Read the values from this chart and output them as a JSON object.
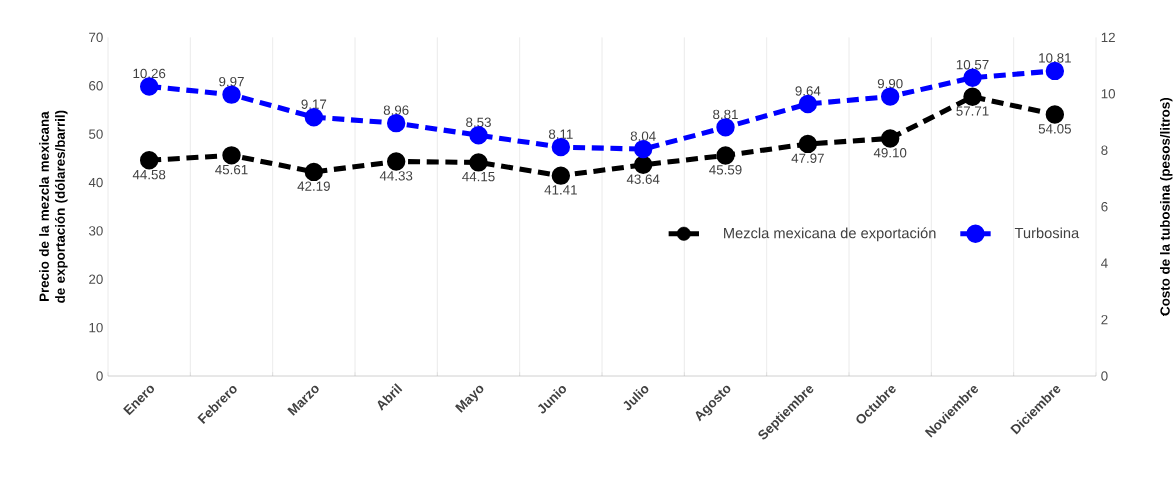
{
  "chart_data": {
    "type": "line",
    "ylabel": "Precio de la mezcla mexicana de exportación (dólares/barril)",
    "y2label": "Costo de la tubosina (pesos/litros)",
    "categories": [
      "Enero",
      "Febrero",
      "Marzo",
      "Abril",
      "Mayo",
      "Junio",
      "Julio",
      "Agosto",
      "Septiembre",
      "Octubre",
      "Noviembre",
      "Diciembre"
    ],
    "series": [
      {
        "name": "Mezcla mexicana de exportación",
        "color": "#000000",
        "axis": "y",
        "values": [
          44.58,
          45.61,
          42.19,
          44.33,
          44.15,
          41.41,
          43.64,
          45.59,
          47.97,
          49.1,
          57.71,
          54.05
        ],
        "value_labels": [
          "44.58",
          "45.61",
          "42.19",
          "44.33",
          "44.15",
          "41.41",
          "43.64",
          "45.59",
          "47.97",
          "49.10",
          "57.71",
          "54.05"
        ]
      },
      {
        "name": "Turbosina",
        "color": "#0000ff",
        "axis": "y2",
        "values": [
          10.26,
          9.97,
          9.17,
          8.96,
          8.53,
          8.11,
          8.04,
          8.81,
          9.64,
          9.9,
          10.57,
          10.81
        ],
        "value_labels": [
          "10.26",
          "9.97",
          "9.17",
          "8.96",
          "8.53",
          "8.11",
          "8.04",
          "8.81",
          "9.64",
          "9.90",
          "10.57",
          "10.81"
        ]
      }
    ],
    "ylim": [
      0,
      70
    ],
    "yticks": [
      0,
      10,
      20,
      30,
      40,
      50,
      60,
      70
    ],
    "y2lim": [
      0,
      12
    ],
    "y2ticks": [
      0,
      2,
      4,
      6,
      8,
      10,
      12
    ],
    "grid": "x",
    "legend": "right",
    "marker": "circle",
    "line_style": "dashed"
  }
}
